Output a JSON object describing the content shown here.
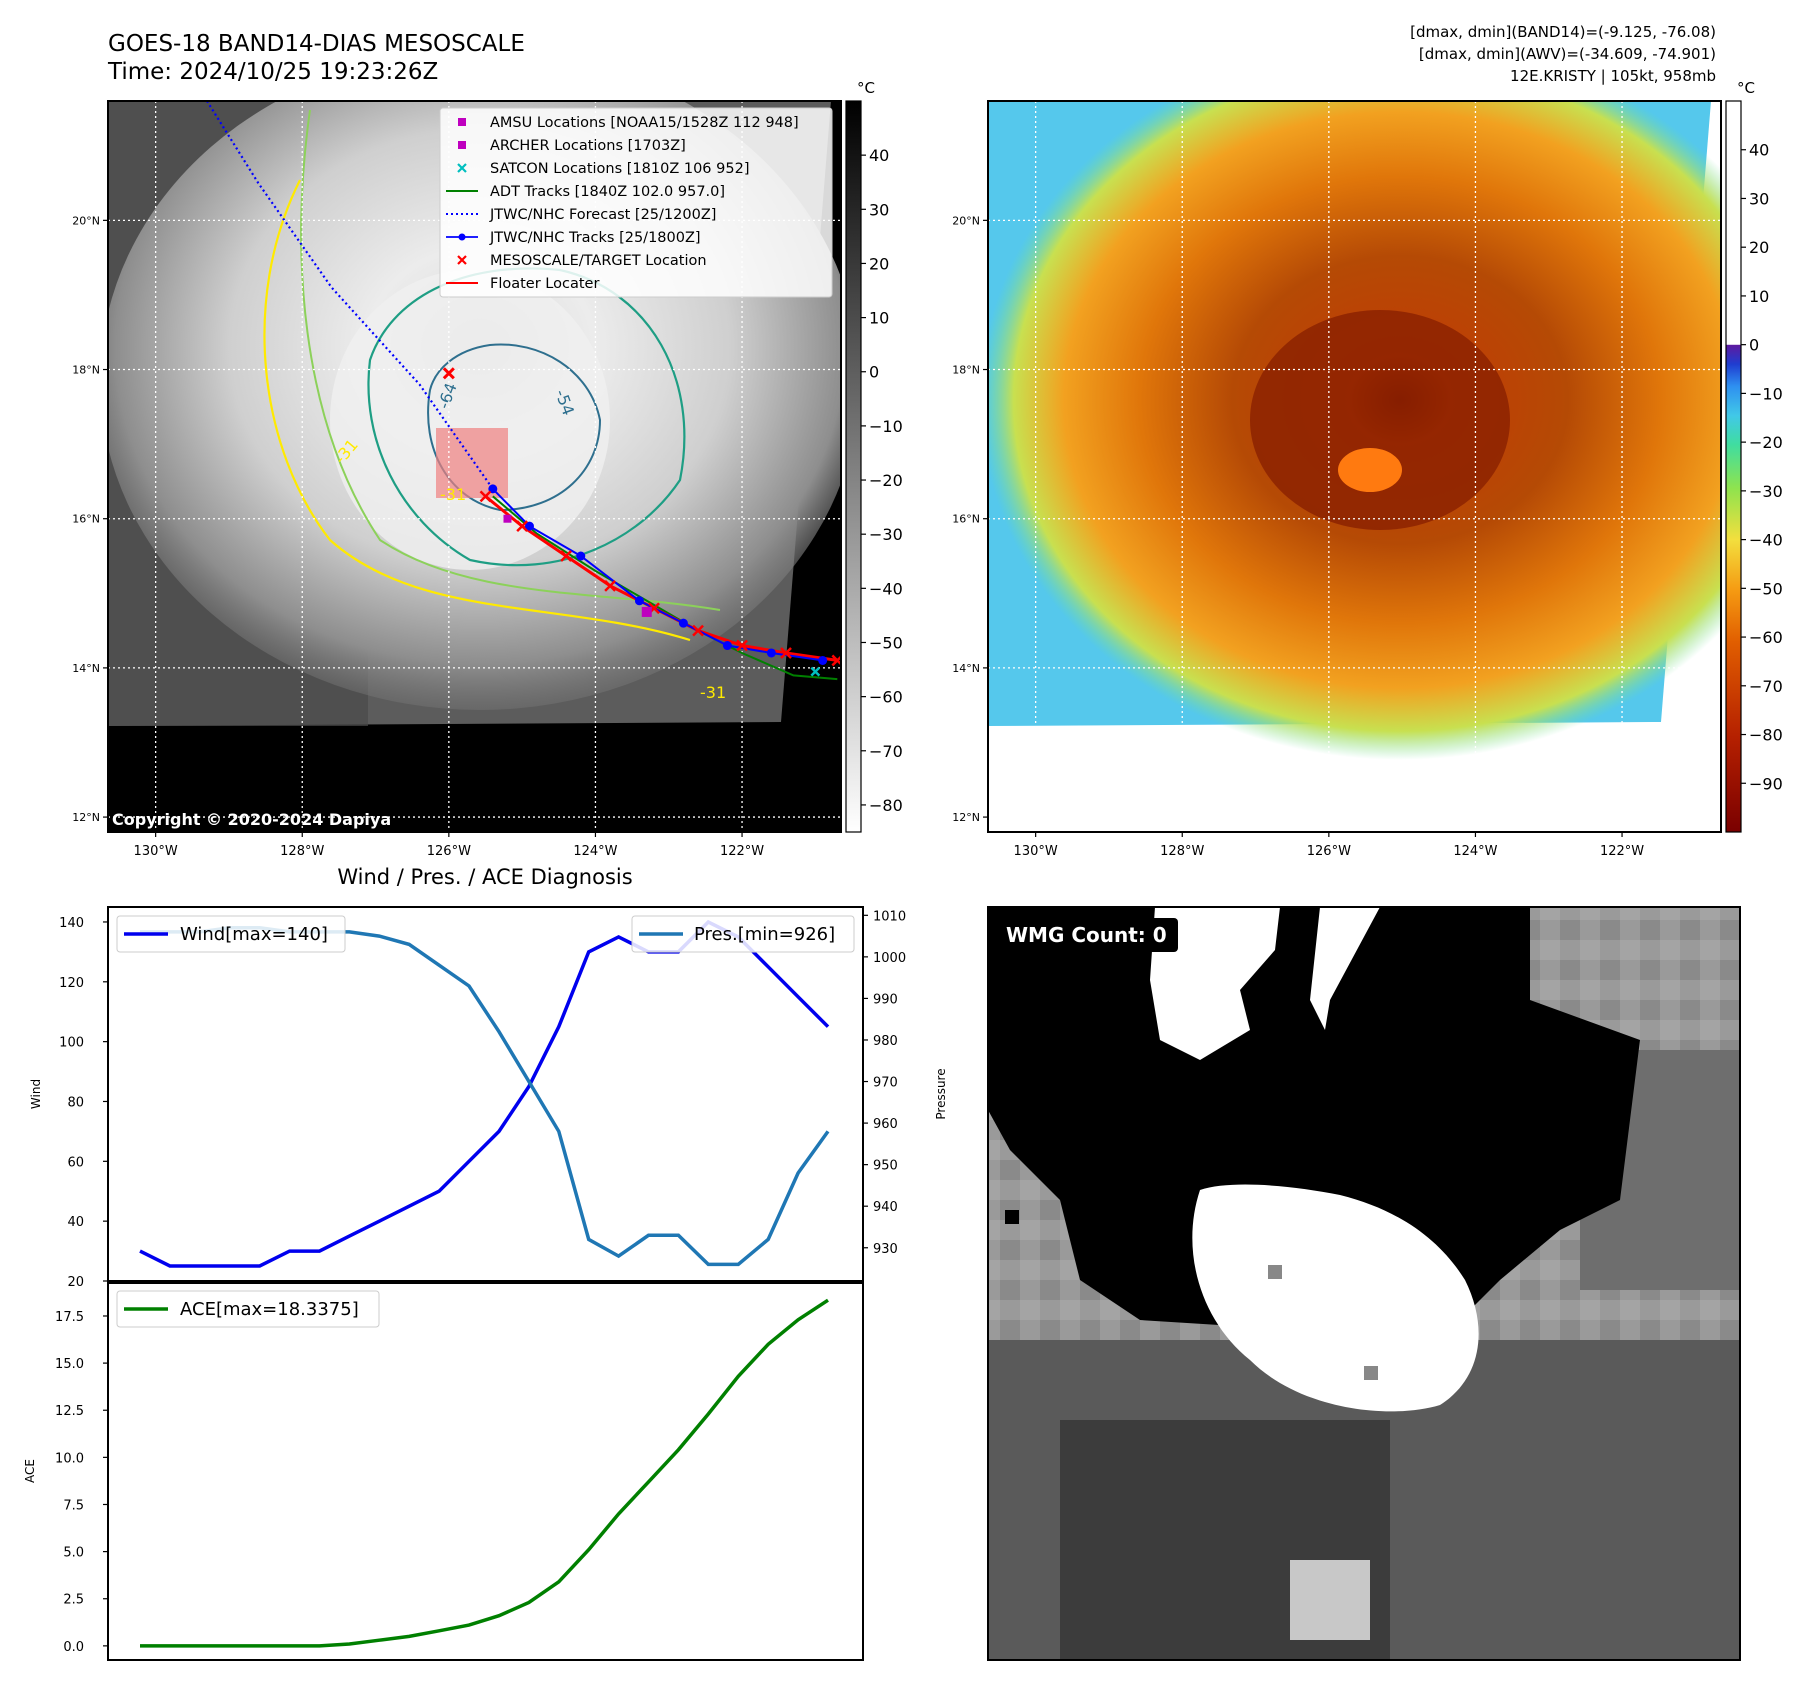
{
  "header": {
    "title_line1": "GOES-18 BAND14-DIAS MESOSCALE",
    "title_line2": "Time: 2024/10/25 19:23:26Z",
    "info_line1": "[dmax, dmin](BAND14)=(-9.125, -76.08)",
    "info_line2": "[dmax, dmin](AWV)=(-34.609, -74.901)",
    "info_line3": "12E.KRISTY | 105kt, 958mb"
  },
  "map": {
    "lon_ticks": [
      "130°W",
      "128°W",
      "126°W",
      "124°W",
      "122°W"
    ],
    "lat_ticks": [
      "20°N",
      "18°N",
      "16°N",
      "14°N",
      "12°N"
    ],
    "lon_values": [
      -130,
      -128,
      -126,
      -124,
      -122
    ],
    "lat_values": [
      20,
      18,
      16,
      14,
      12
    ],
    "lon_range": [
      -130.65,
      -120.65
    ],
    "lat_range": [
      11.8,
      21.6
    ],
    "copyright": "Copyright © 2020-2024 Dapiya",
    "contour_labels": [
      "-64",
      "-54",
      "-31",
      "-31",
      "-31"
    ]
  },
  "colorbar_gray": {
    "unit": "°C",
    "ticks": [
      "40",
      "30",
      "20",
      "10",
      "0",
      "−10",
      "−20",
      "−30",
      "−40",
      "−50",
      "−60",
      "−70",
      "−80"
    ],
    "range": [
      -85,
      50
    ]
  },
  "colorbar_awv": {
    "unit": "°C",
    "ticks": [
      "40",
      "30",
      "20",
      "10",
      "0",
      "−10",
      "−20",
      "−30",
      "−40",
      "−50",
      "−60",
      "−70",
      "−80",
      "−90"
    ],
    "range": [
      -100,
      50
    ]
  },
  "legend": {
    "items": [
      {
        "label": "AMSU Locations [NOAA15/1528Z 112 948]",
        "color": "#bf00bf"
      },
      {
        "label": "ARCHER Locations [1703Z]",
        "color": "#bf00bf"
      },
      {
        "label": "SATCON Locations [1810Z 106 952]",
        "color": "#00bfbf"
      },
      {
        "label": "ADT Tracks [1840Z 102.0 957.0]",
        "color": "#008000"
      },
      {
        "label": "JTWC/NHC Forecast [25/1200Z]",
        "color": "#0000ff"
      },
      {
        "label": "JTWC/NHC Tracks [25/1800Z]",
        "color": "#0000ff"
      },
      {
        "label": "MESOSCALE/TARGET Location",
        "color": "#ff0000"
      },
      {
        "label": "Floater Locater",
        "color": "#ff0000"
      }
    ]
  },
  "tracks": {
    "forecast": [
      [
        -129.3,
        21.6
      ],
      [
        -128.6,
        20.5
      ],
      [
        -127.6,
        19.1
      ],
      [
        -126.4,
        17.8
      ],
      [
        -125.4,
        16.4
      ]
    ],
    "jtwc": [
      [
        -125.4,
        16.4
      ],
      [
        -124.9,
        15.9
      ],
      [
        -124.2,
        15.5
      ],
      [
        -123.4,
        14.9
      ],
      [
        -122.8,
        14.6
      ],
      [
        -122.2,
        14.3
      ],
      [
        -121.6,
        14.2
      ],
      [
        -120.9,
        14.1
      ]
    ],
    "adt": [
      [
        -125.4,
        16.3
      ],
      [
        -124.8,
        15.8
      ],
      [
        -124.0,
        15.3
      ],
      [
        -123.3,
        14.9
      ],
      [
        -122.6,
        14.5
      ],
      [
        -122.0,
        14.2
      ],
      [
        -121.3,
        13.9
      ],
      [
        -120.7,
        13.85
      ]
    ],
    "floater": [
      [
        -125.5,
        16.3
      ],
      [
        -125.0,
        15.9
      ],
      [
        -124.4,
        15.5
      ],
      [
        -123.8,
        15.1
      ],
      [
        -123.2,
        14.8
      ],
      [
        -122.6,
        14.5
      ],
      [
        -122.0,
        14.3
      ],
      [
        -121.4,
        14.2
      ],
      [
        -120.7,
        14.1
      ]
    ],
    "target": [
      -126.0,
      17.95
    ],
    "amsu": [
      -123.3,
      14.75
    ],
    "archer": [
      -125.2,
      16.0
    ],
    "satcon": [
      -121.0,
      13.95
    ]
  },
  "chart_data": [
    {
      "type": "line",
      "title": "Wind / Pres. / ACE Diagnosis",
      "x": [
        0,
        1,
        2,
        3,
        4,
        5,
        6,
        7,
        8,
        9,
        10,
        11,
        12,
        13,
        14,
        15,
        16,
        17,
        18,
        19,
        20,
        21,
        22,
        23
      ],
      "ylabel": "Wind",
      "ylim": [
        20,
        145
      ],
      "y2label": "Pressure",
      "y2lim": [
        922,
        1012
      ],
      "yticks": [
        "140",
        "120",
        "100",
        "80",
        "60",
        "40",
        "20"
      ],
      "y2ticks": [
        "1010",
        "1000",
        "990",
        "980",
        "970",
        "960",
        "950",
        "940",
        "930"
      ],
      "series": [
        {
          "name": "Wind[max=140]",
          "axis": "left",
          "color": "#0000ee",
          "values": [
            30,
            25,
            25,
            25,
            25,
            30,
            30,
            35,
            40,
            45,
            50,
            60,
            70,
            85,
            105,
            130,
            135,
            130,
            130,
            140,
            135,
            125,
            115,
            105
          ]
        },
        {
          "name": "Pres.[min=926]",
          "axis": "right",
          "color": "#1f77b4",
          "values": [
            1006,
            1006,
            1006,
            1007,
            1007,
            1006,
            1006,
            1006,
            1005,
            1003,
            998,
            993,
            982,
            970,
            958,
            932,
            928,
            933,
            933,
            926,
            926,
            932,
            948,
            958
          ]
        }
      ]
    },
    {
      "type": "line",
      "x": [
        0,
        1,
        2,
        3,
        4,
        5,
        6,
        7,
        8,
        9,
        10,
        11,
        12,
        13,
        14,
        15,
        16,
        17,
        18,
        19,
        20,
        21,
        22,
        23
      ],
      "ylabel": "ACE",
      "ylim": [
        -0.75,
        19.25
      ],
      "yticks": [
        "17.5",
        "15.0",
        "12.5",
        "10.0",
        "7.5",
        "5.0",
        "2.5",
        "0.0"
      ],
      "series": [
        {
          "name": "ACE[max=18.3375]",
          "color": "#008000",
          "values": [
            0,
            0,
            0,
            0,
            0,
            0,
            0,
            0.1,
            0.3,
            0.5,
            0.8,
            1.1,
            1.6,
            2.3,
            3.4,
            5.1,
            7.0,
            8.7,
            10.4,
            12.3,
            14.3,
            16.0,
            17.3,
            18.3375
          ]
        }
      ]
    }
  ],
  "wmg": {
    "label": "WMG Count: 0"
  }
}
